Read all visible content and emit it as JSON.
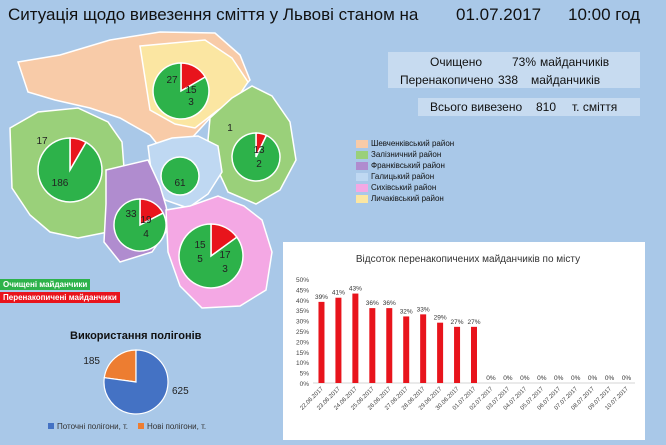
{
  "header": {
    "title": "Ситуація щодо вивезення сміття у Львові станом на",
    "date": "01.07.2017",
    "time": "10:00 год"
  },
  "stats": {
    "cleaned_label": "Очищено",
    "cleaned_value": "73%",
    "cleaned_unit": "майданчиків",
    "overflow_label": "Перенакопичено",
    "overflow_value": "338",
    "overflow_unit": "майданчиків",
    "total_label": "Всього вивезено",
    "total_value": "810",
    "total_unit": "т. сміття"
  },
  "district_legend": [
    {
      "label": "Шевченківський район",
      "color": "#f8cba8"
    },
    {
      "label": "Залізничний район",
      "color": "#9ad07a"
    },
    {
      "label": "Франківський район",
      "color": "#b08ccf"
    },
    {
      "label": "Галицький район",
      "color": "#bfd8f2"
    },
    {
      "label": "Сихівський район",
      "color": "#f4a8e4"
    },
    {
      "label": "Личаківський район",
      "color": "#fbe6a2"
    }
  ],
  "map_tags": {
    "cleaned": "Очищені майданчики",
    "overflow": "Перенакопичені майданчики",
    "cleaned_color": "#2db24a",
    "overflow_color": "#e8141c"
  },
  "district_pies": [
    {
      "district": "Личаківський",
      "green": 15,
      "red": 3,
      "red_label": "27"
    },
    {
      "district": "Залізничний",
      "green": 186,
      "red": 17
    },
    {
      "district": "Шевченківський",
      "green": 13,
      "red": 1,
      "extra": "2"
    },
    {
      "district": "Галицький",
      "green": 61,
      "red": 0
    },
    {
      "district": "Франківський",
      "green": 19,
      "red": 4,
      "red_label": "33"
    },
    {
      "district": "Сихівський",
      "green": 17,
      "red": 3,
      "red_label": "15",
      "red_extra": "5"
    }
  ],
  "chart_data": [
    {
      "type": "bar",
      "title": "Відсоток перенакопичених майданчиків по місту",
      "categories": [
        "22.06.2017",
        "23.06.2017",
        "24.06.2017",
        "25.06.2017",
        "26.06.2017",
        "27.06.2017",
        "28.06.2017",
        "29.06.2017",
        "30.06.2017",
        "01.07.2017",
        "02.07.2017",
        "03.07.2017",
        "04.07.2017",
        "05.07.2017",
        "06.07.2017",
        "07.07.2017",
        "08.07.2017",
        "09.07.2017",
        "10.07.2017"
      ],
      "values": [
        39,
        41,
        43,
        36,
        36,
        32,
        33,
        29,
        27,
        27,
        0,
        0,
        0,
        0,
        0,
        0,
        0,
        0,
        0
      ],
      "data_labels": [
        "39%",
        "41%",
        "43%",
        "36%",
        "36%",
        "32%",
        "33%",
        "29%",
        "27%",
        "27%",
        "0%",
        "0%",
        "0%",
        "0%",
        "0%",
        "0%",
        "0%",
        "0%",
        "0%"
      ],
      "yticks": [
        "0%",
        "5%",
        "10%",
        "15%",
        "20%",
        "25%",
        "30%",
        "35%",
        "40%",
        "45%",
        "50%"
      ],
      "ylim": [
        0,
        50
      ],
      "color": "#e8141c"
    },
    {
      "type": "pie",
      "title": "Використання полігонів",
      "labels": [
        "Поточні полігони, т.",
        "Нові полігони, т."
      ],
      "values": [
        625,
        185
      ],
      "colors": [
        "#4472c4",
        "#ed7d31"
      ]
    }
  ]
}
